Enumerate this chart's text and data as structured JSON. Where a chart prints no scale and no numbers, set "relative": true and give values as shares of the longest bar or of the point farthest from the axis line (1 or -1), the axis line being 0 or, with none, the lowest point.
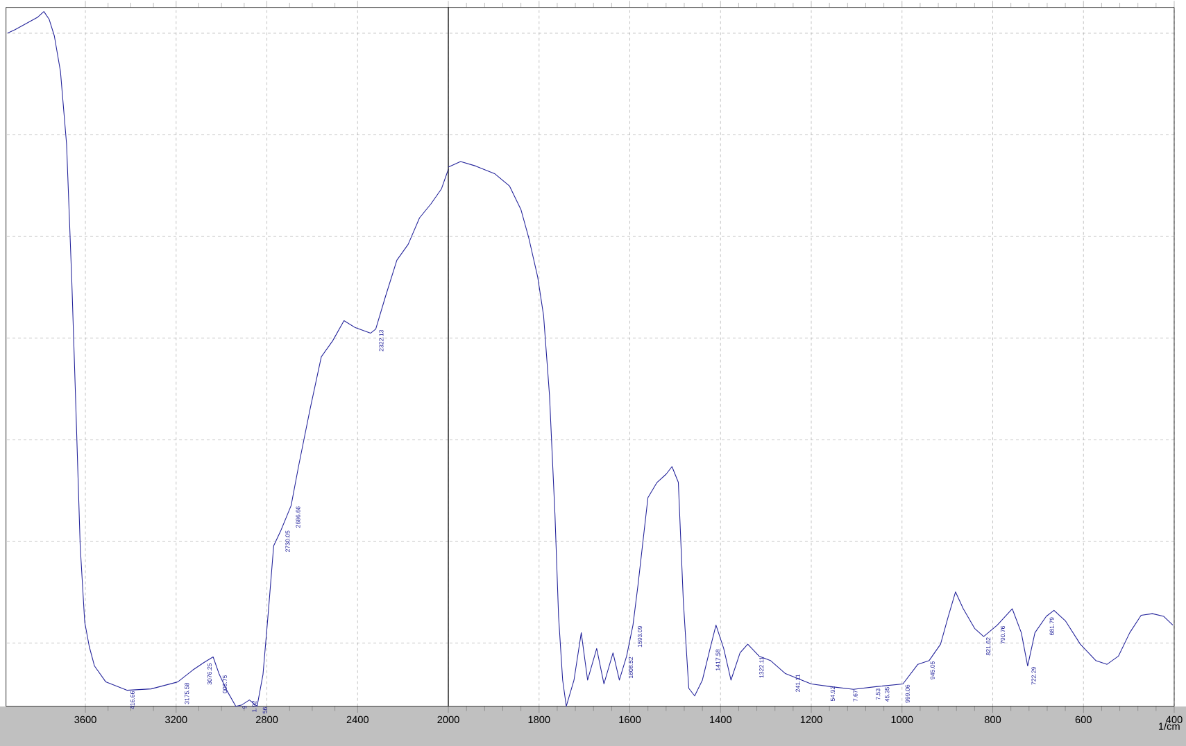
{
  "chart_data": [
    {
      "type": "line",
      "relative": true,
      "xlim": [
        3950,
        2000
      ],
      "xticks": [
        3600,
        3200,
        2800,
        2400
      ],
      "grid": true,
      "series": [
        {
          "color": "#22229a",
          "x": [
            3943,
            3910,
            3860,
            3810,
            3783,
            3760,
            3737,
            3710,
            3683,
            3660,
            3643,
            3623,
            3603,
            3583,
            3560,
            3510,
            3417,
            3310,
            3193,
            3127,
            3077,
            3037,
            3010,
            2977,
            2937,
            2910,
            2877,
            2843,
            2817,
            2793,
            2770,
            2737,
            2693,
            2660,
            2610,
            2560,
            2510,
            2460,
            2410,
            2343,
            2320,
            2277,
            2227,
            2177,
            2127,
            2077,
            2030,
            2000
          ],
          "values": [
            0.969,
            0.974,
            0.983,
            0.992,
            1.0,
            0.989,
            0.965,
            0.914,
            0.809,
            0.612,
            0.44,
            0.231,
            0.121,
            0.086,
            0.058,
            0.035,
            0.023,
            0.025,
            0.035,
            0.052,
            0.063,
            0.071,
            0.046,
            0.023,
            0.0,
            0.002,
            0.009,
            0.0,
            0.046,
            0.138,
            0.231,
            0.254,
            0.289,
            0.346,
            0.427,
            0.503,
            0.526,
            0.555,
            0.545,
            0.537,
            0.543,
            0.59,
            0.642,
            0.665,
            0.703,
            0.723,
            0.745,
            0.773
          ]
        }
      ],
      "annotations": [
        {
          "text": "416.66",
          "x": 3417,
          "y": 0.023
        },
        {
          "text": "3175.58",
          "x": 3177,
          "y": 0.035
        },
        {
          "text": "3076.25",
          "x": 3077,
          "y": 0.063
        },
        {
          "text": "008.75",
          "x": 3010,
          "y": 0.046
        },
        {
          "text": "9",
          "x": 2923,
          "y": 0.002
        },
        {
          "text": "1.92",
          "x": 2880,
          "y": 0.009
        },
        {
          "text": "56",
          "x": 2833,
          "y": 0.0
        },
        {
          "text": "2730.05",
          "x": 2733,
          "y": 0.254
        },
        {
          "text": "2686.66",
          "x": 2687,
          "y": 0.289
        },
        {
          "text": "2322.13",
          "x": 2320,
          "y": 0.543
        }
      ]
    },
    {
      "type": "line",
      "relative": true,
      "xlim": [
        2000,
        400
      ],
      "xticks": [
        2000,
        1800,
        1600,
        1400,
        1200,
        1000,
        800,
        600,
        400
      ],
      "grid": true,
      "xlabel": "1/cm",
      "series": [
        {
          "color": "#22229a",
          "x": [
            2000,
            1973,
            1940,
            1898,
            1865,
            1840,
            1823,
            1803,
            1790,
            1777,
            1765,
            1757,
            1748,
            1740,
            1723,
            1707,
            1693,
            1673,
            1657,
            1637,
            1623,
            1607,
            1593,
            1582,
            1570,
            1560,
            1540,
            1520,
            1507,
            1493,
            1482,
            1470,
            1457,
            1440,
            1423,
            1410,
            1393,
            1377,
            1357,
            1340,
            1315,
            1290,
            1257,
            1200,
            1157,
            1107,
            1057,
            998,
            965,
            940,
            915,
            898,
            882,
            865,
            840,
            820,
            790,
            757,
            737,
            723,
            707,
            682,
            665,
            640,
            607,
            573,
            548,
            523,
            498,
            473,
            448,
            423,
            403
          ],
          "values": [
            0.99,
            1.0,
            0.992,
            0.978,
            0.955,
            0.912,
            0.861,
            0.788,
            0.717,
            0.571,
            0.353,
            0.165,
            0.048,
            0.0,
            0.048,
            0.135,
            0.048,
            0.106,
            0.041,
            0.098,
            0.048,
            0.092,
            0.149,
            0.222,
            0.31,
            0.383,
            0.411,
            0.426,
            0.44,
            0.411,
            0.193,
            0.033,
            0.019,
            0.048,
            0.106,
            0.149,
            0.106,
            0.048,
            0.098,
            0.114,
            0.092,
            0.084,
            0.06,
            0.041,
            0.036,
            0.031,
            0.036,
            0.041,
            0.077,
            0.084,
            0.114,
            0.165,
            0.21,
            0.179,
            0.143,
            0.128,
            0.149,
            0.179,
            0.135,
            0.074,
            0.135,
            0.165,
            0.176,
            0.157,
            0.114,
            0.084,
            0.077,
            0.092,
            0.135,
            0.167,
            0.17,
            0.165,
            0.149
          ]
        }
      ],
      "annotations": [
        {
          "text": "1608.52",
          "x": 1610,
          "y": 0.092
        },
        {
          "text": "1593.09",
          "x": 1590,
          "y": 0.149
        },
        {
          "text": "1417.58",
          "x": 1418,
          "y": 0.106
        },
        {
          "text": "1322.11",
          "x": 1322,
          "y": 0.092
        },
        {
          "text": "241.11",
          "x": 1242,
          "y": 0.06
        },
        {
          "text": "54.92",
          "x": 1165,
          "y": 0.038
        },
        {
          "text": "7.67",
          "x": 1115,
          "y": 0.031
        },
        {
          "text": "7.53",
          "x": 1065,
          "y": 0.034
        },
        {
          "text": "45.35",
          "x": 1045,
          "y": 0.037
        },
        {
          "text": "999.06",
          "x": 1000,
          "y": 0.041
        },
        {
          "text": "945.05",
          "x": 945,
          "y": 0.084
        },
        {
          "text": "821.62",
          "x": 822,
          "y": 0.128
        },
        {
          "text": "790.76",
          "x": 790,
          "y": 0.149
        },
        {
          "text": "722.29",
          "x": 722,
          "y": 0.074
        },
        {
          "text": "681.79",
          "x": 682,
          "y": 0.165
        }
      ]
    }
  ]
}
